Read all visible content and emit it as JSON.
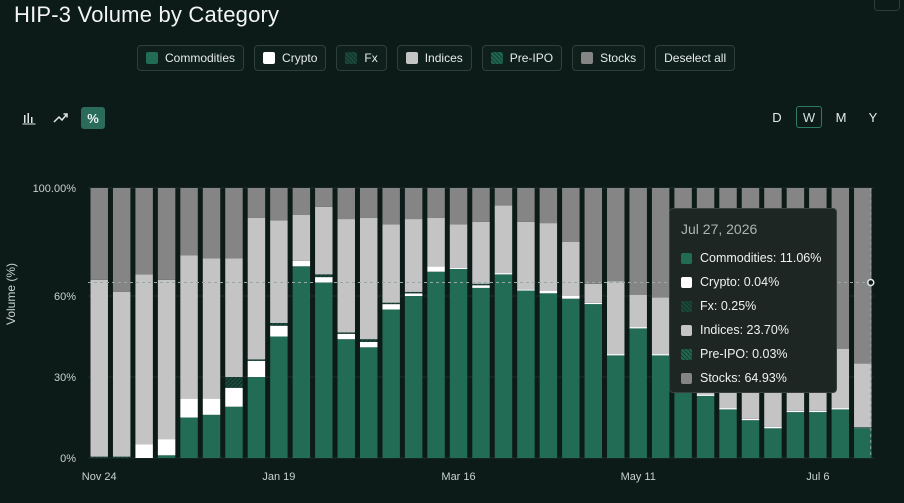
{
  "title": "HIP-3 Volume by Category",
  "legend": {
    "items": [
      {
        "label": "Commodities",
        "color": "#226b55"
      },
      {
        "label": "Crypto",
        "color": "#ffffff"
      },
      {
        "label": "Fx",
        "color": "#1b4a3d"
      },
      {
        "label": "Indices",
        "color": "#c4c4c4"
      },
      {
        "label": "Pre-IPO",
        "color": "#206650"
      },
      {
        "label": "Stocks",
        "color": "#858585"
      }
    ],
    "deselect_label": "Deselect all"
  },
  "modes": [
    {
      "icon": "bar-chart-icon",
      "active": false
    },
    {
      "icon": "trend-line-icon",
      "active": false
    },
    {
      "icon": "percent-icon",
      "label": "%",
      "active": true
    }
  ],
  "periods": [
    {
      "label": "D",
      "active": false
    },
    {
      "label": "W",
      "active": true
    },
    {
      "label": "M",
      "active": false
    },
    {
      "label": "Y",
      "active": false
    }
  ],
  "tooltip": {
    "date": "Jul 27, 2026",
    "rows": [
      {
        "label": "Commodities: 11.06%",
        "color": "#226b55"
      },
      {
        "label": "Crypto: 0.04%",
        "color": "#ffffff"
      },
      {
        "label": "Fx: 0.25%",
        "color": "#1b4a3d"
      },
      {
        "label": "Indices: 23.70%",
        "color": "#c4c4c4"
      },
      {
        "label": "Pre-IPO: 0.03%",
        "color": "#206650"
      },
      {
        "label": "Stocks: 64.93%",
        "color": "#858585"
      }
    ]
  },
  "chart_data": {
    "type": "bar",
    "stacked": true,
    "ylabel": "Volume (%)",
    "ylim": [
      0,
      100
    ],
    "yticks": [
      "0%",
      "30%",
      "60%",
      "100.00%"
    ],
    "xticks": [
      "Nov 24",
      "Jan 19",
      "Mar 16",
      "May 11",
      "Jul 6"
    ],
    "series_order": [
      "Commodities",
      "Crypto",
      "Fx",
      "Indices",
      "Pre-IPO",
      "Stocks"
    ],
    "colors": {
      "Commodities": "#226b55",
      "Crypto": "#ffffff",
      "Fx": "#1b4a3d",
      "Indices": "#c4c4c4",
      "Pre-IPO": "#206650",
      "Stocks": "#858585"
    },
    "bars": [
      {
        "Commodities": 0,
        "Crypto": 0,
        "Fx": 0.5,
        "Indices": 65.5,
        "Pre-IPO": 0,
        "Stocks": 34
      },
      {
        "Commodities": 0,
        "Crypto": 0,
        "Fx": 0.5,
        "Indices": 61,
        "Pre-IPO": 0,
        "Stocks": 38.5
      },
      {
        "Commodities": 0,
        "Crypto": 5,
        "Fx": 0,
        "Indices": 63,
        "Pre-IPO": 0,
        "Stocks": 32
      },
      {
        "Commodities": 1,
        "Crypto": 6,
        "Fx": 0,
        "Indices": 59,
        "Pre-IPO": 0,
        "Stocks": 34
      },
      {
        "Commodities": 15,
        "Crypto": 7,
        "Fx": 0,
        "Indices": 53,
        "Pre-IPO": 0,
        "Stocks": 25
      },
      {
        "Commodities": 16,
        "Crypto": 6,
        "Fx": 0,
        "Indices": 52,
        "Pre-IPO": 0,
        "Stocks": 26
      },
      {
        "Commodities": 19,
        "Crypto": 7,
        "Fx": 4,
        "Indices": 44,
        "Pre-IPO": 0,
        "Stocks": 26
      },
      {
        "Commodities": 30,
        "Crypto": 6,
        "Fx": 0.5,
        "Indices": 52.5,
        "Pre-IPO": 0,
        "Stocks": 11
      },
      {
        "Commodities": 45,
        "Crypto": 4,
        "Fx": 1,
        "Indices": 38,
        "Pre-IPO": 0,
        "Stocks": 12
      },
      {
        "Commodities": 71,
        "Crypto": 2,
        "Fx": 0,
        "Indices": 17,
        "Pre-IPO": 0,
        "Stocks": 10
      },
      {
        "Commodities": 65,
        "Crypto": 2,
        "Fx": 1,
        "Indices": 25,
        "Pre-IPO": 0,
        "Stocks": 7
      },
      {
        "Commodities": 44,
        "Crypto": 2,
        "Fx": 0.5,
        "Indices": 42,
        "Pre-IPO": 0,
        "Stocks": 11.5
      },
      {
        "Commodities": 41,
        "Crypto": 2,
        "Fx": 1,
        "Indices": 45,
        "Pre-IPO": 0,
        "Stocks": 11
      },
      {
        "Commodities": 55,
        "Crypto": 2,
        "Fx": 0.5,
        "Indices": 29,
        "Pre-IPO": 0,
        "Stocks": 13.5
      },
      {
        "Commodities": 60,
        "Crypto": 1,
        "Fx": 0.5,
        "Indices": 27,
        "Pre-IPO": 0,
        "Stocks": 11.5
      },
      {
        "Commodities": 69,
        "Crypto": 2,
        "Fx": 0,
        "Indices": 18,
        "Pre-IPO": 0,
        "Stocks": 11
      },
      {
        "Commodities": 70,
        "Crypto": 0.5,
        "Fx": 0,
        "Indices": 16,
        "Pre-IPO": 0,
        "Stocks": 13.5
      },
      {
        "Commodities": 63,
        "Crypto": 1,
        "Fx": 0.5,
        "Indices": 23,
        "Pre-IPO": 0,
        "Stocks": 12.5
      },
      {
        "Commodities": 68,
        "Crypto": 0.5,
        "Fx": 0,
        "Indices": 25,
        "Pre-IPO": 0,
        "Stocks": 6.5
      },
      {
        "Commodities": 62,
        "Crypto": 0.5,
        "Fx": 0,
        "Indices": 25,
        "Pre-IPO": 0,
        "Stocks": 12.5
      },
      {
        "Commodities": 61,
        "Crypto": 1,
        "Fx": 0,
        "Indices": 25,
        "Pre-IPO": 0,
        "Stocks": 13
      },
      {
        "Commodities": 59,
        "Crypto": 1,
        "Fx": 0,
        "Indices": 20,
        "Pre-IPO": 0,
        "Stocks": 20
      },
      {
        "Commodities": 57,
        "Crypto": 0.5,
        "Fx": 0,
        "Indices": 7,
        "Pre-IPO": 0,
        "Stocks": 35.5
      },
      {
        "Commodities": 38,
        "Crypto": 0.5,
        "Fx": 0,
        "Indices": 27,
        "Pre-IPO": 0,
        "Stocks": 34.5
      },
      {
        "Commodities": 48,
        "Crypto": 0.5,
        "Fx": 0,
        "Indices": 12,
        "Pre-IPO": 0,
        "Stocks": 39.5
      },
      {
        "Commodities": 38,
        "Crypto": 0.5,
        "Fx": 0,
        "Indices": 21,
        "Pre-IPO": 0,
        "Stocks": 40.5
      },
      {
        "Commodities": 30,
        "Crypto": 0.5,
        "Fx": 0,
        "Indices": 28,
        "Pre-IPO": 0,
        "Stocks": 41.5
      },
      {
        "Commodities": 23,
        "Crypto": 0.5,
        "Fx": 0,
        "Indices": 34,
        "Pre-IPO": 0,
        "Stocks": 42.5
      },
      {
        "Commodities": 18,
        "Crypto": 0.5,
        "Fx": 0,
        "Indices": 39,
        "Pre-IPO": 0,
        "Stocks": 42.5
      },
      {
        "Commodities": 14,
        "Crypto": 0.5,
        "Fx": 0,
        "Indices": 44,
        "Pre-IPO": 0,
        "Stocks": 41.5
      },
      {
        "Commodities": 11,
        "Crypto": 0.5,
        "Fx": 0,
        "Indices": 47,
        "Pre-IPO": 0,
        "Stocks": 41.5
      },
      {
        "Commodities": 17,
        "Crypto": 0.5,
        "Fx": 0,
        "Indices": 42,
        "Pre-IPO": 0,
        "Stocks": 40.5
      },
      {
        "Commodities": 17,
        "Crypto": 0.5,
        "Fx": 0,
        "Indices": 23,
        "Pre-IPO": 0,
        "Stocks": 59.5
      },
      {
        "Commodities": 18,
        "Crypto": 0.5,
        "Fx": 0,
        "Indices": 22,
        "Pre-IPO": 0,
        "Stocks": 59.5
      },
      {
        "Commodities": 11.06,
        "Crypto": 0.04,
        "Fx": 0.25,
        "Indices": 23.7,
        "Pre-IPO": 0.03,
        "Stocks": 64.93
      }
    ],
    "xtick_indices": [
      0,
      8,
      16,
      24,
      32
    ],
    "hover_index": 34,
    "hover_value": 65
  }
}
